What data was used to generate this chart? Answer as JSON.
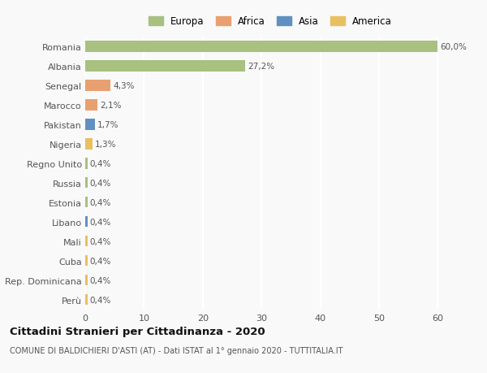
{
  "categories": [
    "Romania",
    "Albania",
    "Senegal",
    "Marocco",
    "Pakistan",
    "Nigeria",
    "Regno Unito",
    "Russia",
    "Estonia",
    "Libano",
    "Mali",
    "Cuba",
    "Rep. Dominicana",
    "Perù"
  ],
  "values": [
    60.0,
    27.2,
    4.3,
    2.1,
    1.7,
    1.3,
    0.4,
    0.4,
    0.4,
    0.4,
    0.4,
    0.4,
    0.4,
    0.4
  ],
  "labels": [
    "60,0%",
    "27,2%",
    "4,3%",
    "2,1%",
    "1,7%",
    "1,3%",
    "0,4%",
    "0,4%",
    "0,4%",
    "0,4%",
    "0,4%",
    "0,4%",
    "0,4%",
    "0,4%"
  ],
  "colors": [
    "#a8c080",
    "#a8c080",
    "#e8a070",
    "#e8a070",
    "#6090c0",
    "#e8c060",
    "#a8c080",
    "#a8c080",
    "#a8c080",
    "#6090c0",
    "#e8c060",
    "#e8c060",
    "#e8c060",
    "#e8c060"
  ],
  "legend": [
    {
      "label": "Europa",
      "color": "#a8c080"
    },
    {
      "label": "Africa",
      "color": "#e8a070"
    },
    {
      "label": "Asia",
      "color": "#6090c0"
    },
    {
      "label": "America",
      "color": "#e8c060"
    }
  ],
  "xlim": [
    0,
    63
  ],
  "xticks": [
    0,
    10,
    20,
    30,
    40,
    50,
    60
  ],
  "title": "Cittadini Stranieri per Cittadinanza - 2020",
  "subtitle": "COMUNE DI BALDICHIERI D'ASTI (AT) - Dati ISTAT al 1° gennaio 2020 - TUTTITALIA.IT",
  "background_color": "#f9f9f9",
  "grid_color": "#ffffff",
  "bar_height": 0.55
}
